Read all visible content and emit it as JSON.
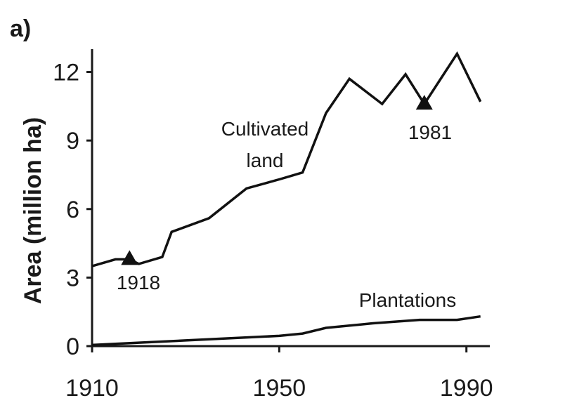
{
  "chart_data": {
    "type": "line",
    "panel_label": "a)",
    "title": "",
    "xlabel": "",
    "ylabel": "Area (million ha)",
    "xlim": [
      1910,
      1995
    ],
    "ylim": [
      0,
      13
    ],
    "x_ticks": [
      1910,
      1950,
      1990
    ],
    "x_tick_labels": [
      "1910",
      "1950",
      "1990"
    ],
    "y_ticks": [
      0,
      3,
      6,
      9,
      12
    ],
    "y_tick_labels": [
      "0",
      "3",
      "6",
      "9",
      "12"
    ],
    "grid": false,
    "series": [
      {
        "name": "Cultivated land",
        "label_lines": [
          "Cultivated",
          "land"
        ],
        "x": [
          1910,
          1915,
          1918,
          1920,
          1925,
          1927,
          1935,
          1943,
          1950,
          1955,
          1960,
          1965,
          1972,
          1977,
          1981,
          1988,
          1993
        ],
        "y": [
          3.5,
          3.8,
          3.8,
          3.6,
          3.9,
          5.0,
          5.6,
          6.9,
          7.3,
          7.6,
          10.2,
          11.7,
          10.6,
          11.9,
          10.6,
          12.8,
          10.7
        ]
      },
      {
        "name": "Plantations",
        "label_lines": [
          "Plantations"
        ],
        "x": [
          1910,
          1920,
          1930,
          1940,
          1950,
          1955,
          1960,
          1970,
          1980,
          1988,
          1993
        ],
        "y": [
          0.05,
          0.15,
          0.25,
          0.35,
          0.45,
          0.55,
          0.8,
          1.0,
          1.15,
          1.15,
          1.3
        ]
      }
    ],
    "markers": [
      {
        "series": "Cultivated land",
        "x": 1918,
        "y": 3.8,
        "shape": "triangle",
        "label": "1918"
      },
      {
        "series": "Cultivated land",
        "x": 1981,
        "y": 10.6,
        "shape": "triangle",
        "label": "1981"
      }
    ]
  }
}
